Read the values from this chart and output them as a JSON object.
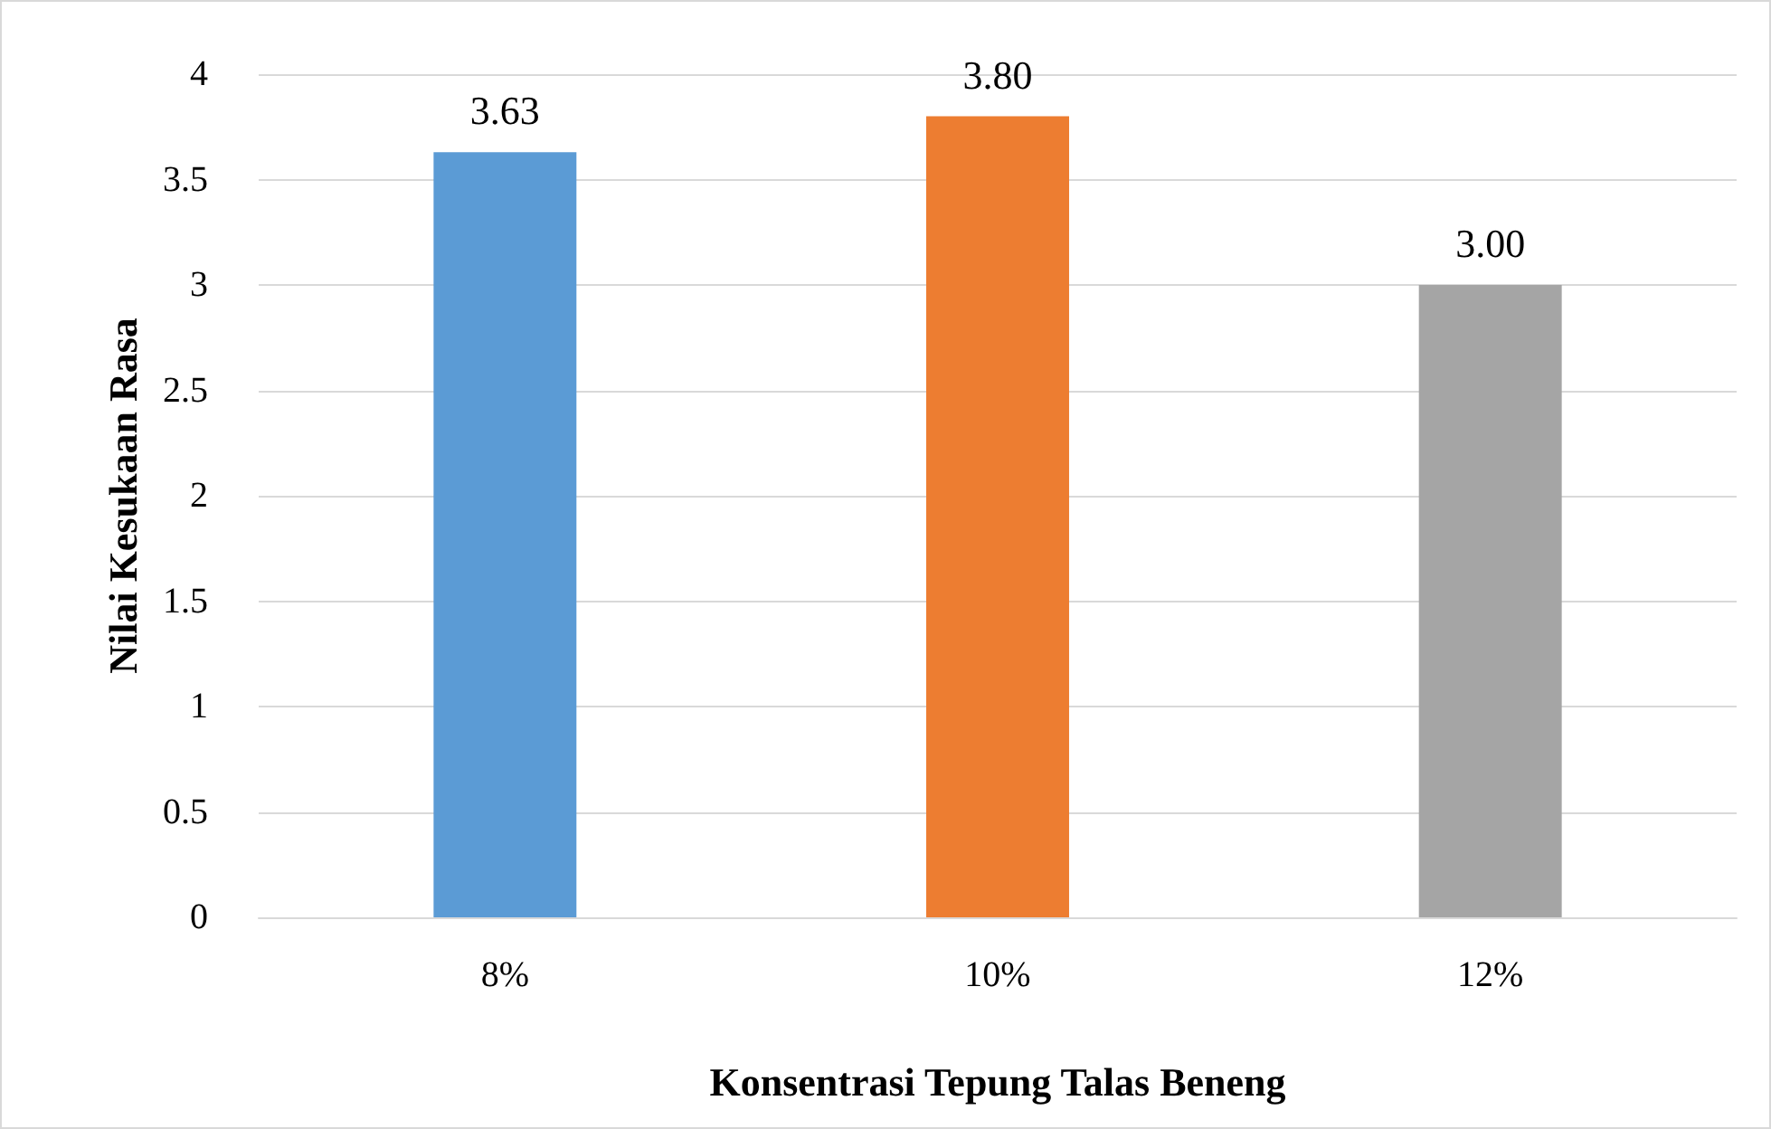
{
  "chart_data": {
    "type": "bar",
    "xlabel": "Konsentrasi Tepung Talas Beneng",
    "ylabel": "Nilai Kesukaan Rasa",
    "categories": [
      "8%",
      "10%",
      "12%"
    ],
    "values": [
      3.63,
      3.8,
      3.0
    ],
    "colors": [
      "#5b9bd5",
      "#ed7d31",
      "#a5a5a5"
    ],
    "value_labels": [
      "3.63",
      "3.80",
      "3.00"
    ],
    "ylim": [
      0,
      4
    ],
    "yticks": [
      0,
      0.5,
      1,
      1.5,
      2,
      2.5,
      3,
      3.5,
      4
    ],
    "grid": "y"
  }
}
